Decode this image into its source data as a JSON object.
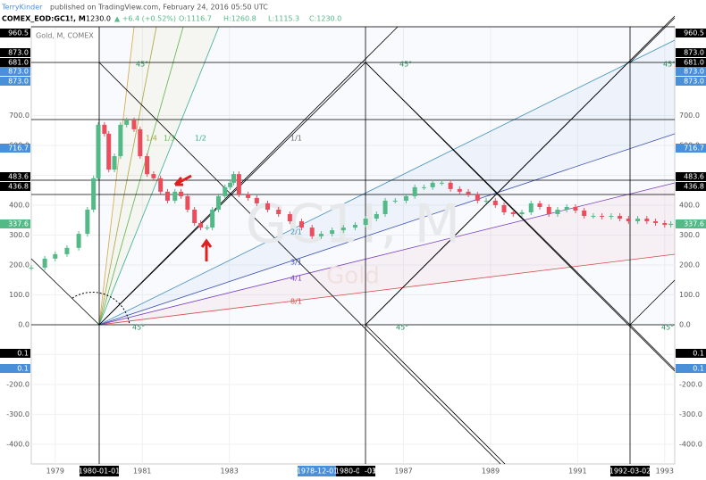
{
  "header": {
    "author": "TerryKinder",
    "published": "published on TradingView.com, February 24, 2016 05:50 UTC",
    "symbol": "COMEX_EOD:GC1!, M",
    "last": "1230.0",
    "change": "▲ +6.4 (+0.52%)",
    "open": "O:1116.7",
    "high": "H:1260.8",
    "low": "L:1115.3",
    "close": "C:1230.0"
  },
  "chart_data": {
    "type": "candlestick",
    "pane_title": "Gold, M, COMEX",
    "watermark": "GC1!, M",
    "watermark_sub": "Gold",
    "up_color": "#53b987",
    "down_color": "#eb4d5c",
    "x": [
      1978.45,
      1978.76,
      1979.0,
      1979.27,
      1979.54,
      1979.74,
      1979.88,
      1979.99,
      1980.13,
      1980.23,
      1980.36,
      1980.5,
      1980.64,
      1980.81,
      1980.95,
      1981.11,
      1981.26,
      1981.42,
      1981.58,
      1981.75,
      1981.89,
      1982.04,
      1982.2,
      1982.34,
      1982.49,
      1982.61,
      1982.75,
      1982.9,
      1983.02,
      1983.1,
      1983.22,
      1983.43,
      1983.63,
      1983.88,
      1984.13,
      1984.39,
      1984.66,
      1984.9,
      1985.11,
      1985.36,
      1985.62,
      1985.89,
      1986.13,
      1986.38,
      1986.58,
      1986.81,
      1987.06,
      1987.26,
      1987.47,
      1987.67,
      1987.88,
      1988.08,
      1988.29,
      1988.49,
      1988.7,
      1988.9,
      1989.11,
      1989.31,
      1989.52,
      1989.72,
      1989.93,
      1990.13,
      1990.34,
      1990.54,
      1990.75,
      1990.95,
      1991.15,
      1991.36,
      1991.56,
      1991.77,
      1991.97,
      1992.17,
      1992.38,
      1992.59,
      1992.79,
      1993.0,
      1993.14
    ],
    "values": [
      191,
      221,
      236,
      257,
      304,
      385,
      490,
      669,
      639,
      519,
      564,
      669,
      684,
      654,
      564,
      504,
      490,
      445,
      415,
      445,
      430,
      385,
      340,
      325,
      325,
      385,
      430,
      460,
      475,
      504,
      436,
      424,
      406,
      385,
      370,
      346,
      325,
      296,
      304,
      316,
      325,
      334,
      355,
      370,
      415,
      415,
      430,
      460,
      460,
      475,
      475,
      454,
      445,
      436,
      415,
      415,
      400,
      376,
      370,
      376,
      406,
      394,
      370,
      385,
      394,
      382,
      364,
      364,
      361,
      364,
      355,
      346,
      355,
      346,
      340,
      334,
      337.6
    ],
    "xlim": [
      1978.45,
      1993.23
    ],
    "ylim": [
      -466,
      997
    ],
    "xticks": [
      1979,
      1981,
      1983,
      1987,
      1989,
      1991,
      1993
    ],
    "yticks": [
      {
        "value": -400,
        "label": "-400.0"
      },
      {
        "value": -300,
        "label": "-300.0"
      },
      {
        "value": -200,
        "label": "-200.0"
      },
      {
        "value": -100,
        "label": "-100.0"
      },
      {
        "value": 0,
        "label": "0.0"
      },
      {
        "value": 100,
        "label": "100.0"
      },
      {
        "value": 200,
        "label": "200.0"
      },
      {
        "value": 300,
        "label": "300.0"
      },
      {
        "value": 400,
        "label": "400.0"
      },
      {
        "value": 500,
        "label": "500.0"
      },
      {
        "value": 600,
        "label": "600.0"
      },
      {
        "value": 700,
        "label": "700.0"
      }
    ],
    "grid": true,
    "price_labels": [
      {
        "label": "960.5",
        "color": "#000000"
      },
      {
        "label": "873.0",
        "color": "#000000"
      },
      {
        "label": "681.0",
        "color": "#000000"
      },
      {
        "label": "873.0",
        "color": "#4a90d9"
      },
      {
        "label": "873.0",
        "color": "#4a90d9"
      },
      {
        "label": "716.7",
        "color": "#4a90d9"
      },
      {
        "label": "483.6",
        "color": "#000000"
      },
      {
        "label": "436.8",
        "color": "#000000"
      },
      {
        "label": "337.6",
        "color": "#53b987"
      },
      {
        "label": "0.1",
        "color": "#000000"
      },
      {
        "label": "0.1",
        "color": "#4a90d9"
      }
    ],
    "date_labels": [
      {
        "label": "1980-01-01",
        "color": "#000000"
      },
      {
        "label": "1978-12-01",
        "color": "#4a90d9"
      },
      {
        "label": "1980-01-01",
        "color": "#000000"
      },
      {
        "label": "-03",
        "color": "#000000"
      },
      {
        "label": "1992-03-02",
        "color": "#000000"
      }
    ],
    "fan_labels": [
      "1/4",
      "1/3",
      "1/2",
      "1/1",
      "2/1",
      "3/1",
      "4/1",
      "8/1"
    ],
    "angle_labels": [
      "45°",
      "45°",
      "45°",
      "45°",
      "45°",
      "45°"
    ]
  }
}
